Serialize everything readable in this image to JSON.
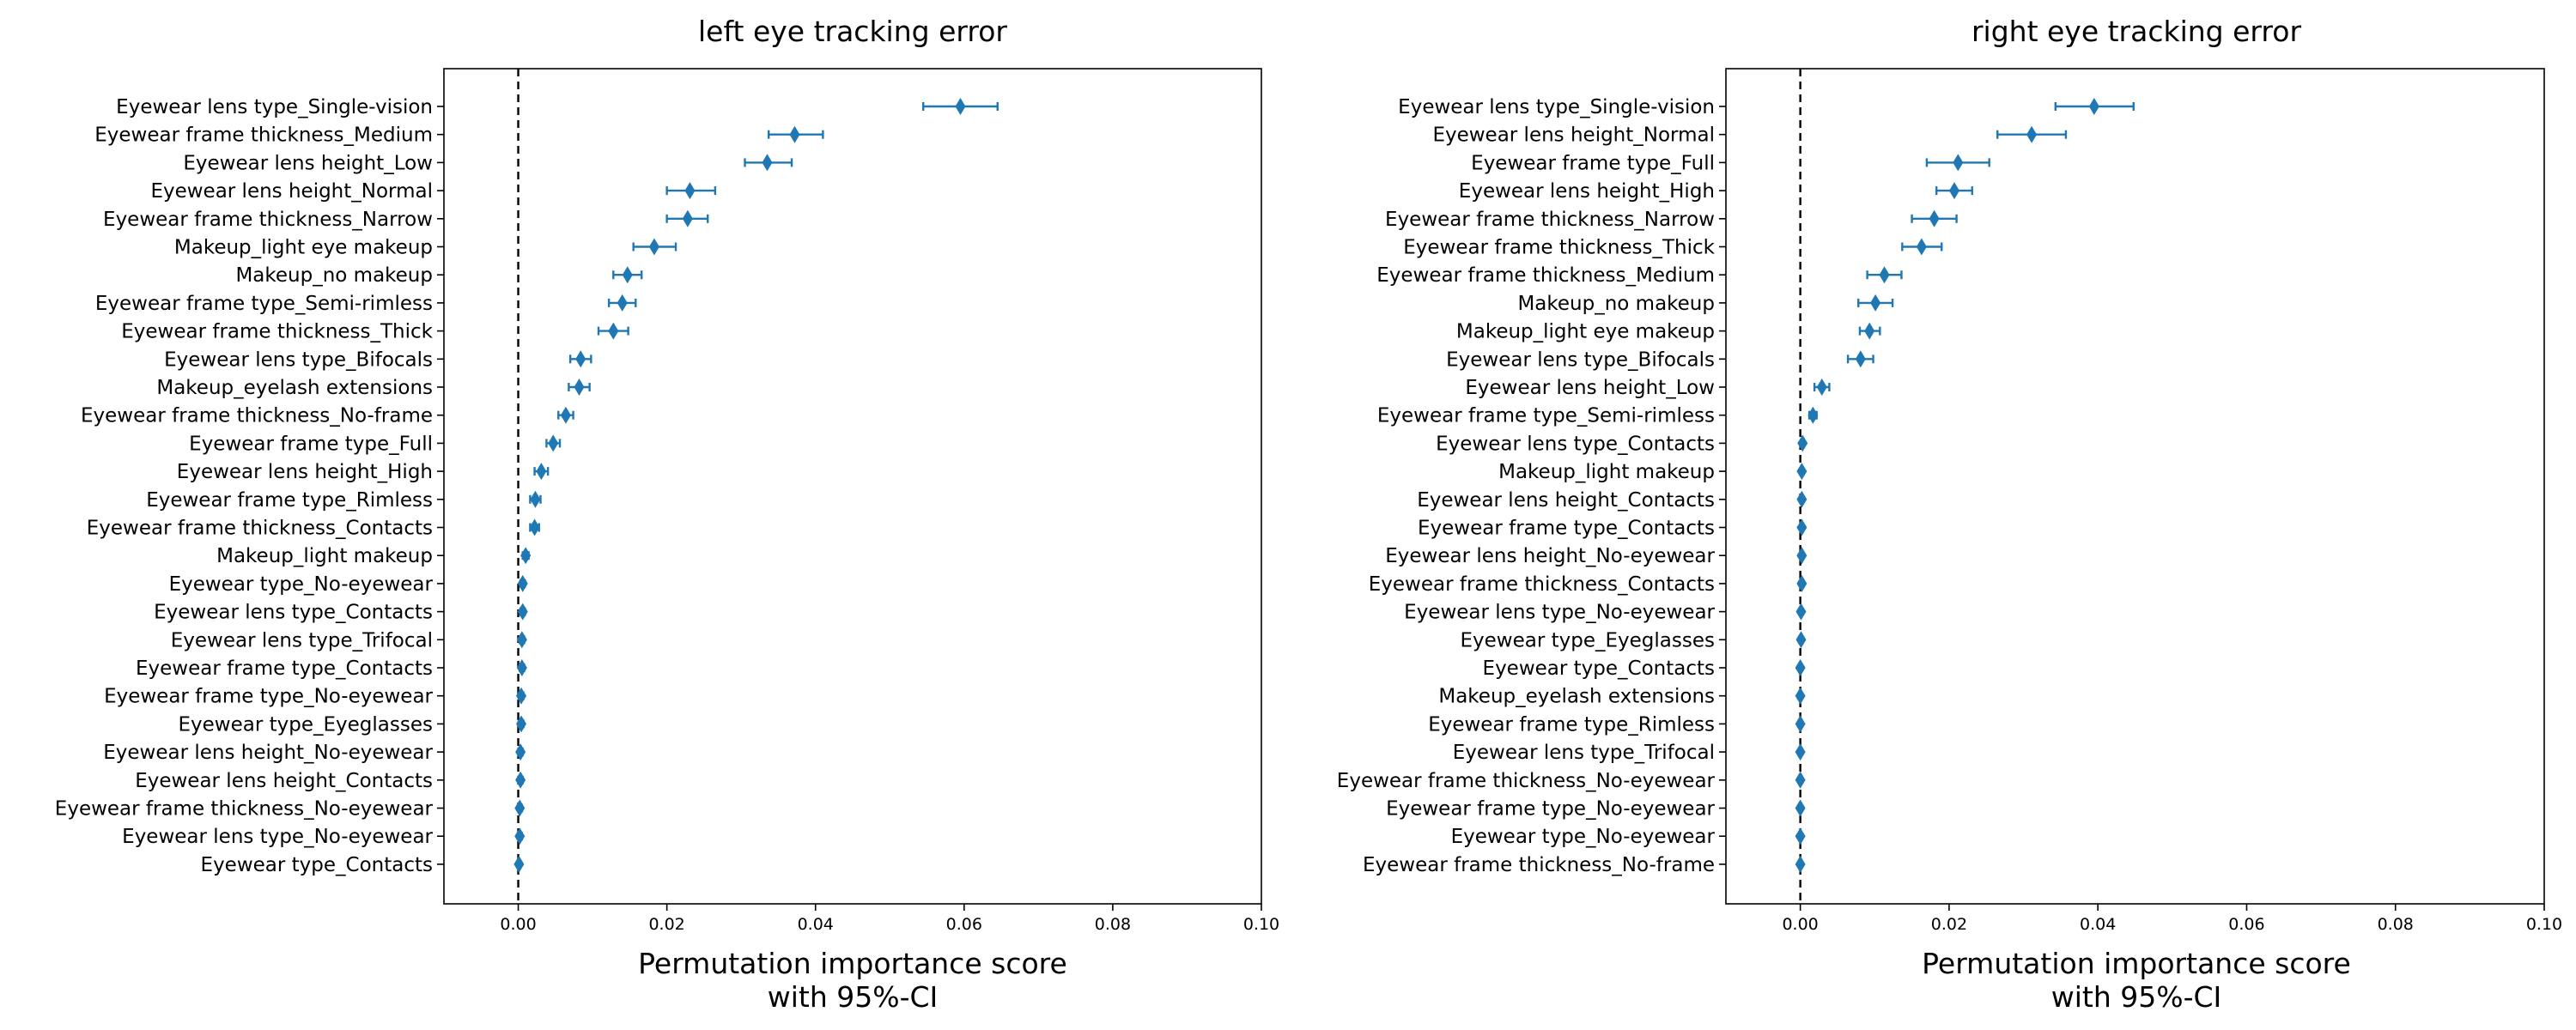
{
  "colors": {
    "marker": "#1f77b4",
    "axis": "#000000",
    "reference_line": "#000000",
    "background": "#ffffff"
  },
  "chart_data": [
    {
      "type": "scatter",
      "title": "left eye tracking error",
      "xlabel": [
        "Permutation importance score",
        "with 95%-CI"
      ],
      "ylabel": "",
      "xlim": [
        -0.01,
        0.1
      ],
      "xticks": [
        0.0,
        0.02,
        0.04,
        0.06,
        0.08,
        0.1
      ],
      "xtick_labels": [
        "0.00",
        "0.02",
        "0.04",
        "0.06",
        "0.08",
        "0.10"
      ],
      "grid": false,
      "reference_line_x": 0,
      "marker": "diamond",
      "points": [
        {
          "label": "Eyewear lens type_Single-vision",
          "value": 0.0595,
          "ci": [
            0.0545,
            0.0645
          ]
        },
        {
          "label": "Eyewear frame thickness_Medium",
          "value": 0.0372,
          "ci": [
            0.0337,
            0.041
          ]
        },
        {
          "label": "Eyewear lens height_Low",
          "value": 0.0335,
          "ci": [
            0.0305,
            0.0368
          ]
        },
        {
          "label": "Eyewear lens height_Normal",
          "value": 0.0231,
          "ci": [
            0.02,
            0.0265
          ]
        },
        {
          "label": "Eyewear frame thickness_Narrow",
          "value": 0.0228,
          "ci": [
            0.02,
            0.0255
          ]
        },
        {
          "label": "Makeup_light eye makeup",
          "value": 0.0183,
          "ci": [
            0.0155,
            0.0212
          ]
        },
        {
          "label": "Makeup_no makeup",
          "value": 0.0147,
          "ci": [
            0.0128,
            0.0166
          ]
        },
        {
          "label": "Eyewear frame type_Semi-rimless",
          "value": 0.014,
          "ci": [
            0.0122,
            0.0158
          ]
        },
        {
          "label": "Eyewear frame thickness_Thick",
          "value": 0.0128,
          "ci": [
            0.0108,
            0.0148
          ]
        },
        {
          "label": "Eyewear lens type_Bifocals",
          "value": 0.0084,
          "ci": [
            0.007,
            0.0098
          ]
        },
        {
          "label": "Makeup_eyelash extensions",
          "value": 0.0082,
          "ci": [
            0.0068,
            0.0096
          ]
        },
        {
          "label": "Eyewear frame thickness_No-frame",
          "value": 0.0064,
          "ci": [
            0.0054,
            0.0074
          ]
        },
        {
          "label": "Eyewear frame type_Full",
          "value": 0.0047,
          "ci": [
            0.0038,
            0.0056
          ]
        },
        {
          "label": "Eyewear lens height_High",
          "value": 0.0031,
          "ci": [
            0.0022,
            0.004
          ]
        },
        {
          "label": "Eyewear frame type_Rimless",
          "value": 0.0023,
          "ci": [
            0.0016,
            0.003
          ]
        },
        {
          "label": "Eyewear frame thickness_Contacts",
          "value": 0.0022,
          "ci": [
            0.0016,
            0.0028
          ]
        },
        {
          "label": "Makeup_light makeup",
          "value": 0.001,
          "ci": [
            0.0006,
            0.0014
          ]
        },
        {
          "label": "Eyewear type_No-eyewear",
          "value": 0.0006,
          "ci": [
            0.0003,
            0.0009
          ]
        },
        {
          "label": "Eyewear lens type_Contacts",
          "value": 0.0006,
          "ci": [
            0.0003,
            0.0009
          ]
        },
        {
          "label": "Eyewear lens type_Trifocal",
          "value": 0.0005,
          "ci": [
            0.0002,
            0.0008
          ]
        },
        {
          "label": "Eyewear frame type_Contacts",
          "value": 0.0005,
          "ci": [
            0.0002,
            0.0008
          ]
        },
        {
          "label": "Eyewear frame type_No-eyewear",
          "value": 0.0004,
          "ci": [
            0.0001,
            0.0007
          ]
        },
        {
          "label": "Eyewear type_Eyeglasses",
          "value": 0.0004,
          "ci": [
            0.0001,
            0.0007
          ]
        },
        {
          "label": "Eyewear lens height_No-eyewear",
          "value": 0.0003,
          "ci": [
            0.0,
            0.0006
          ]
        },
        {
          "label": "Eyewear lens height_Contacts",
          "value": 0.0003,
          "ci": [
            0.0,
            0.0006
          ]
        },
        {
          "label": "Eyewear frame thickness_No-eyewear",
          "value": 0.0002,
          "ci": [
            0.0,
            0.0005
          ]
        },
        {
          "label": "Eyewear lens type_No-eyewear",
          "value": 0.0002,
          "ci": [
            0.0,
            0.0005
          ]
        },
        {
          "label": "Eyewear type_Contacts",
          "value": 0.0001,
          "ci": [
            -0.0001,
            0.0003
          ]
        }
      ]
    },
    {
      "type": "scatter",
      "title": "right eye tracking error",
      "xlabel": [
        "Permutation importance score",
        "with 95%-CI"
      ],
      "ylabel": "",
      "xlim": [
        -0.01,
        0.1
      ],
      "xticks": [
        0.0,
        0.02,
        0.04,
        0.06,
        0.08,
        0.1
      ],
      "xtick_labels": [
        "0.00",
        "0.02",
        "0.04",
        "0.06",
        "0.08",
        "0.10"
      ],
      "grid": false,
      "reference_line_x": 0,
      "marker": "diamond",
      "points": [
        {
          "label": "Eyewear lens type_Single-vision",
          "value": 0.0395,
          "ci": [
            0.0343,
            0.0448
          ]
        },
        {
          "label": "Eyewear lens height_Normal",
          "value": 0.0311,
          "ci": [
            0.0265,
            0.0357
          ]
        },
        {
          "label": "Eyewear frame type_Full",
          "value": 0.0212,
          "ci": [
            0.017,
            0.0254
          ]
        },
        {
          "label": "Eyewear lens height_High",
          "value": 0.0207,
          "ci": [
            0.0183,
            0.0231
          ]
        },
        {
          "label": "Eyewear frame thickness_Narrow",
          "value": 0.018,
          "ci": [
            0.015,
            0.021
          ]
        },
        {
          "label": "Eyewear frame thickness_Thick",
          "value": 0.0163,
          "ci": [
            0.0137,
            0.019
          ]
        },
        {
          "label": "Eyewear frame thickness_Medium",
          "value": 0.0113,
          "ci": [
            0.009,
            0.0136
          ]
        },
        {
          "label": "Makeup_no makeup",
          "value": 0.0101,
          "ci": [
            0.0078,
            0.0124
          ]
        },
        {
          "label": "Makeup_light eye makeup",
          "value": 0.0093,
          "ci": [
            0.008,
            0.0107
          ]
        },
        {
          "label": "Eyewear lens type_Bifocals",
          "value": 0.0081,
          "ci": [
            0.0064,
            0.0098
          ]
        },
        {
          "label": "Eyewear lens height_Low",
          "value": 0.0029,
          "ci": [
            0.0019,
            0.0039
          ]
        },
        {
          "label": "Eyewear frame type_Semi-rimless",
          "value": 0.0017,
          "ci": [
            0.0012,
            0.0022
          ]
        },
        {
          "label": "Eyewear lens type_Contacts",
          "value": 0.0003,
          "ci": [
            0.0001,
            0.0005
          ]
        },
        {
          "label": "Makeup_light makeup",
          "value": 0.0002,
          "ci": [
            0.0,
            0.0004
          ]
        },
        {
          "label": "Eyewear lens height_Contacts",
          "value": 0.0002,
          "ci": [
            0.0,
            0.0004
          ]
        },
        {
          "label": "Eyewear frame type_Contacts",
          "value": 0.0002,
          "ci": [
            0.0,
            0.0004
          ]
        },
        {
          "label": "Eyewear lens height_No-eyewear",
          "value": 0.0002,
          "ci": [
            0.0,
            0.0004
          ]
        },
        {
          "label": "Eyewear frame thickness_Contacts",
          "value": 0.0002,
          "ci": [
            0.0,
            0.0004
          ]
        },
        {
          "label": "Eyewear lens type_No-eyewear",
          "value": 0.0001,
          "ci": [
            -0.0001,
            0.0003
          ]
        },
        {
          "label": "Eyewear type_Eyeglasses",
          "value": 0.0001,
          "ci": [
            -0.0001,
            0.0003
          ]
        },
        {
          "label": "Eyewear type_Contacts",
          "value": 0.0,
          "ci": [
            -0.0002,
            0.0002
          ]
        },
        {
          "label": "Makeup_eyelash extensions",
          "value": 0.0,
          "ci": [
            -0.0002,
            0.0002
          ]
        },
        {
          "label": "Eyewear frame type_Rimless",
          "value": 0.0,
          "ci": [
            -0.0002,
            0.0002
          ]
        },
        {
          "label": "Eyewear lens type_Trifocal",
          "value": 0.0,
          "ci": [
            -0.0002,
            0.0002
          ]
        },
        {
          "label": "Eyewear frame thickness_No-eyewear",
          "value": 0.0,
          "ci": [
            -0.0002,
            0.0002
          ]
        },
        {
          "label": "Eyewear frame type_No-eyewear",
          "value": 0.0,
          "ci": [
            -0.0002,
            0.0002
          ]
        },
        {
          "label": "Eyewear type_No-eyewear",
          "value": 0.0,
          "ci": [
            -0.0002,
            0.0002
          ]
        },
        {
          "label": "Eyewear frame thickness_No-frame",
          "value": 0.0,
          "ci": [
            -0.0002,
            0.0002
          ]
        }
      ]
    }
  ]
}
